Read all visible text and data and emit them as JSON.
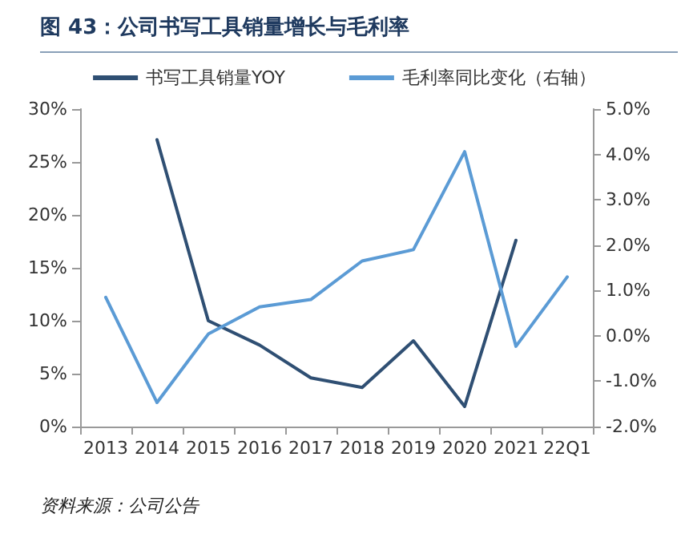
{
  "chart_data": {
    "type": "line",
    "title": "图 43：公司书写工具销量增长与毛利率",
    "annotations": [
      "资料来源：公司公告"
    ],
    "categories": [
      "2013",
      "2014",
      "2015",
      "2016",
      "2017",
      "2018",
      "2019",
      "2020",
      "2021",
      "22Q1"
    ],
    "series": [
      {
        "name": "书写工具销量YOY",
        "color": "#2f4f73",
        "values": [
          null,
          27.1,
          10.0,
          7.7,
          4.6,
          3.7,
          8.1,
          1.9,
          17.6,
          null
        ]
      },
      {
        "name": "毛利率同比变化（右轴）",
        "color": "#5b9bd5",
        "axis": "y2",
        "values": [
          0.85,
          -1.47,
          0.04,
          0.64,
          0.8,
          1.65,
          1.9,
          4.06,
          -0.23,
          1.3
        ]
      }
    ],
    "ylim": [
      0,
      30
    ],
    "yticks": [
      {
        "value": 0,
        "label": "0%"
      },
      {
        "value": 5,
        "label": "5%"
      },
      {
        "value": 10,
        "label": "10%"
      },
      {
        "value": 15,
        "label": "15%"
      },
      {
        "value": 20,
        "label": "20%"
      },
      {
        "value": 25,
        "label": "25%"
      },
      {
        "value": 30,
        "label": "30%"
      }
    ],
    "y2lim": [
      -2,
      5
    ],
    "y2ticks": [
      {
        "value": -2,
        "label": "-2.0%"
      },
      {
        "value": -1,
        "label": "-1.0%"
      },
      {
        "value": 0,
        "label": "0.0%"
      },
      {
        "value": 1,
        "label": "1.0%"
      },
      {
        "value": 2,
        "label": "2.0%"
      },
      {
        "value": 3,
        "label": "3.0%"
      },
      {
        "value": 4,
        "label": "4.0%"
      },
      {
        "value": 5,
        "label": "5.0%"
      }
    ],
    "grid": false,
    "legend": "top",
    "marker": "none",
    "line_style": "solid"
  }
}
